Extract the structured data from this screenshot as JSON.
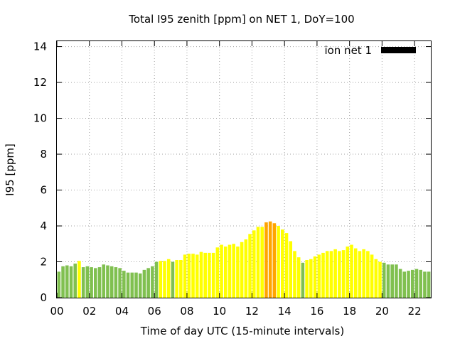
{
  "chart_data": {
    "type": "bar",
    "title": "Total I95 zenith [ppm] on NET 1, DoY=100",
    "xlabel": "Time of day UTC (15-minute intervals)",
    "ylabel": "I95 [ppm]",
    "xlim": [
      0,
      23
    ],
    "ylim": [
      0,
      14.3
    ],
    "xticks": [
      "00",
      "02",
      "04",
      "06",
      "08",
      "10",
      "12",
      "14",
      "16",
      "18",
      "20",
      "22"
    ],
    "xtick_values": [
      0,
      2,
      4,
      6,
      8,
      10,
      12,
      14,
      16,
      18,
      20,
      22
    ],
    "yticks": [
      "0",
      "2",
      "4",
      "6",
      "8",
      "10",
      "12",
      "14"
    ],
    "ytick_values": [
      0,
      2,
      4,
      6,
      8,
      10,
      12,
      14
    ],
    "grid": true,
    "legend": {
      "position": "top-right",
      "label": "ion net 1",
      "color": "#000000"
    },
    "colors": {
      "green": "#80c050",
      "yellow": "#ffff00",
      "orange": "#ffa500"
    },
    "series": [
      {
        "name": "ion net 1",
        "x": [
          0.0,
          0.25,
          0.5,
          0.75,
          1.0,
          1.25,
          1.5,
          1.75,
          2.0,
          2.25,
          2.5,
          2.75,
          3.0,
          3.25,
          3.5,
          3.75,
          4.0,
          4.25,
          4.5,
          4.75,
          5.0,
          5.25,
          5.5,
          5.75,
          6.0,
          6.25,
          6.5,
          6.75,
          7.0,
          7.25,
          7.5,
          7.75,
          8.0,
          8.25,
          8.5,
          8.75,
          9.0,
          9.25,
          9.5,
          9.75,
          10.0,
          10.25,
          10.5,
          10.75,
          11.0,
          11.25,
          11.5,
          11.75,
          12.0,
          12.25,
          12.5,
          12.75,
          13.0,
          13.25,
          13.5,
          13.75,
          14.0,
          14.25,
          14.5,
          14.75,
          15.0,
          15.25,
          15.5,
          15.75,
          16.0,
          16.25,
          16.5,
          16.75,
          17.0,
          17.25,
          17.5,
          17.75,
          18.0,
          18.25,
          18.5,
          18.75,
          19.0,
          19.25,
          19.5,
          19.75,
          20.0,
          20.25,
          20.5,
          20.75,
          21.0,
          21.25,
          21.5,
          21.75,
          22.0,
          22.25,
          22.5,
          22.75
        ],
        "values": [
          1.45,
          1.75,
          1.8,
          1.75,
          1.9,
          2.05,
          1.7,
          1.75,
          1.7,
          1.65,
          1.7,
          1.85,
          1.8,
          1.75,
          1.7,
          1.65,
          1.5,
          1.4,
          1.4,
          1.4,
          1.35,
          1.55,
          1.65,
          1.75,
          2.0,
          2.05,
          2.05,
          2.15,
          2.0,
          2.1,
          2.1,
          2.4,
          2.45,
          2.45,
          2.4,
          2.55,
          2.5,
          2.5,
          2.5,
          2.8,
          2.95,
          2.85,
          2.95,
          3.0,
          2.85,
          3.1,
          3.25,
          3.55,
          3.75,
          3.95,
          3.95,
          4.2,
          4.25,
          4.15,
          4.0,
          3.8,
          3.6,
          3.15,
          2.6,
          2.25,
          1.95,
          2.1,
          2.15,
          2.3,
          2.4,
          2.5,
          2.6,
          2.6,
          2.7,
          2.6,
          2.65,
          2.85,
          2.95,
          2.75,
          2.6,
          2.7,
          2.6,
          2.4,
          2.15,
          2.0,
          1.95,
          1.85,
          1.85,
          1.85,
          1.6,
          1.45,
          1.5,
          1.55,
          1.6,
          1.55,
          1.45,
          1.45
        ],
        "bar_colors": [
          "green",
          "green",
          "green",
          "green",
          "green",
          "yellow",
          "green",
          "green",
          "green",
          "green",
          "green",
          "green",
          "green",
          "green",
          "green",
          "green",
          "green",
          "green",
          "green",
          "green",
          "green",
          "green",
          "green",
          "green",
          "green",
          "yellow",
          "yellow",
          "yellow",
          "green",
          "yellow",
          "yellow",
          "yellow",
          "yellow",
          "yellow",
          "yellow",
          "yellow",
          "yellow",
          "yellow",
          "yellow",
          "yellow",
          "yellow",
          "yellow",
          "yellow",
          "yellow",
          "yellow",
          "yellow",
          "yellow",
          "yellow",
          "yellow",
          "yellow",
          "yellow",
          "orange",
          "orange",
          "orange",
          "yellow",
          "yellow",
          "yellow",
          "yellow",
          "yellow",
          "yellow",
          "green",
          "yellow",
          "yellow",
          "yellow",
          "yellow",
          "yellow",
          "yellow",
          "yellow",
          "yellow",
          "yellow",
          "yellow",
          "yellow",
          "yellow",
          "yellow",
          "yellow",
          "yellow",
          "yellow",
          "yellow",
          "yellow",
          "yellow",
          "green",
          "green",
          "green",
          "green",
          "green",
          "green",
          "green",
          "green",
          "green",
          "green",
          "green",
          "green"
        ]
      }
    ]
  }
}
